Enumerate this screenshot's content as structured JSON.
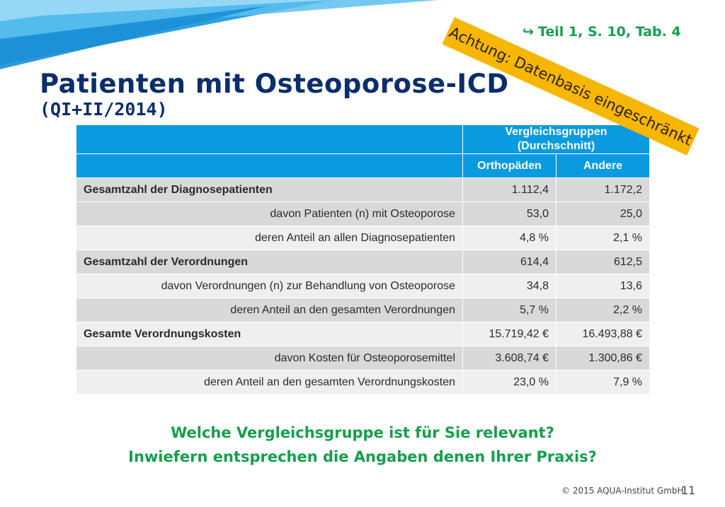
{
  "slide": {
    "reference": "Teil  1, S. 10, Tab. 4",
    "reference_icon": "arrow-icon",
    "title": "Patienten mit Osteoporose-ICD",
    "subtitle": "(QI+II/2014)",
    "warning": "Achtung: Datenbasis eingeschränkt",
    "question1": "Welche Vergleichsgruppe ist für Sie relevant?",
    "question2": "Inwiefern entsprechen die Angaben denen Ihrer Praxis?",
    "footer": "© 2015 AQUA-Institut GmbH",
    "page_number": "11"
  },
  "table": {
    "group_header_line1": "Vergleichsgruppen",
    "group_header_line2": "(Durchschnitt)",
    "col1": "Orthopäden",
    "col2": "Andere",
    "rows": [
      {
        "label": "Gesamtzahl der Diagnosepatienten",
        "v1": "1.112,4",
        "v2": "1.172,2"
      },
      {
        "label": "davon Patienten (n) mit Osteoporose",
        "v1": "53,0",
        "v2": "25,0"
      },
      {
        "label": "deren Anteil an allen Diagnosepatienten",
        "v1": "4,8 %",
        "v2": "2,1 %"
      },
      {
        "label": "Gesamtzahl der Verordnungen",
        "v1": "614,4",
        "v2": "612,5"
      },
      {
        "label": "davon Verordnungen (n) zur Behandlung von Osteoporose",
        "v1": "34,8",
        "v2": "13,6"
      },
      {
        "label": "deren Anteil an den gesamten Verordnungen",
        "v1": "5,7 %",
        "v2": "2,2 %"
      },
      {
        "label": "Gesamte Verordnungskosten",
        "v1": "15.719,42 €",
        "v2": "16.493,88 €"
      },
      {
        "label": "davon Kosten für Osteoporosemittel",
        "v1": "3.608,74 €",
        "v2": "1.300,86 €"
      },
      {
        "label": "deren Anteil an den gesamten Verordnungskosten",
        "v1": "23,0 %",
        "v2": "7,9 %"
      }
    ]
  },
  "colors": {
    "header_blue": "#0a9adf",
    "title_navy": "#0b2d6b",
    "accent_green": "#169e4c",
    "warning_yellow": "#f7b600"
  }
}
